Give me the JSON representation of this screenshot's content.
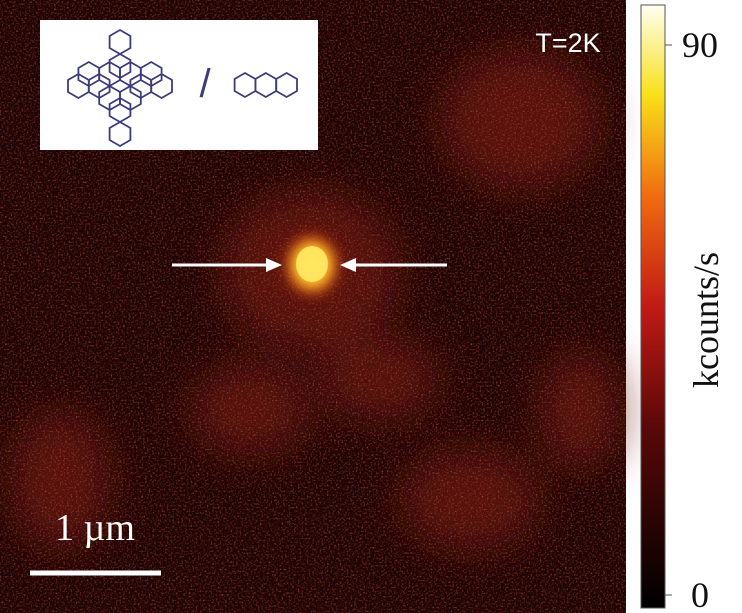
{
  "annotations": {
    "temperature": "T=2K",
    "scale_bar": "1 µm"
  },
  "inset": {
    "separator": "/"
  },
  "colorbar": {
    "label": "kcounts/s",
    "lim": [
      0,
      90
    ],
    "ticks": [
      0,
      90
    ]
  }
}
